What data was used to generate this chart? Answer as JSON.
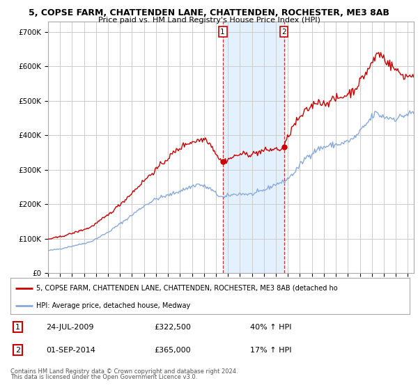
{
  "title1": "5, COPSE FARM, CHATTENDEN LANE, CHATTENDEN, ROCHESTER, ME3 8AB",
  "title2": "Price paid vs. HM Land Registry's House Price Index (HPI)",
  "ylabel_ticks": [
    "£0",
    "£100K",
    "£200K",
    "£300K",
    "£400K",
    "£500K",
    "£600K",
    "£700K"
  ],
  "ytick_vals": [
    0,
    100000,
    200000,
    300000,
    400000,
    500000,
    600000,
    700000
  ],
  "ylim": [
    0,
    730000
  ],
  "xlim_start": 1995.0,
  "xlim_end": 2025.5,
  "transaction1": {
    "year": 2009.56,
    "price": 322500,
    "label": "1",
    "date": "24-JUL-2009",
    "pct": "40%"
  },
  "transaction2": {
    "year": 2014.67,
    "price": 365000,
    "label": "2",
    "date": "01-SEP-2014",
    "pct": "17%"
  },
  "line_property_color": "#cc0000",
  "line_hpi_color": "#88aadd",
  "bg_color": "#ffffff",
  "plot_bg_color": "#ffffff",
  "grid_color": "#cccccc",
  "highlight_color": "#ddeeff",
  "legend_label_property": "5, COPSE FARM, CHATTENDEN LANE, CHATTENDEN, ROCHESTER, ME3 8AB (detached ho",
  "legend_label_hpi": "HPI: Average price, detached house, Medway",
  "footer1": "Contains HM Land Registry data © Crown copyright and database right 2024.",
  "footer2": "This data is licensed under the Open Government Licence v3.0.",
  "note1_label": "1",
  "note1_date": "24-JUL-2009",
  "note1_price": "£322,500",
  "note1_pct": "40% ↑ HPI",
  "note2_label": "2",
  "note2_date": "01-SEP-2014",
  "note2_price": "£365,000",
  "note2_pct": "17% ↑ HPI"
}
